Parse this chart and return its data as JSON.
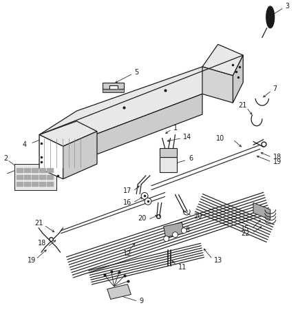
{
  "bg_color": "#ffffff",
  "line_color": "#1a1a1a",
  "gray_light": "#e8e8e8",
  "gray_mid": "#cccccc",
  "gray_dark": "#aaaaaa",
  "gray_shade": "#d4d4d4",
  "figsize": [
    4.33,
    4.5
  ],
  "dpi": 100,
  "lw_main": 0.9,
  "lw_thin": 0.6,
  "lw_wire": 0.55,
  "fs_label": 7
}
